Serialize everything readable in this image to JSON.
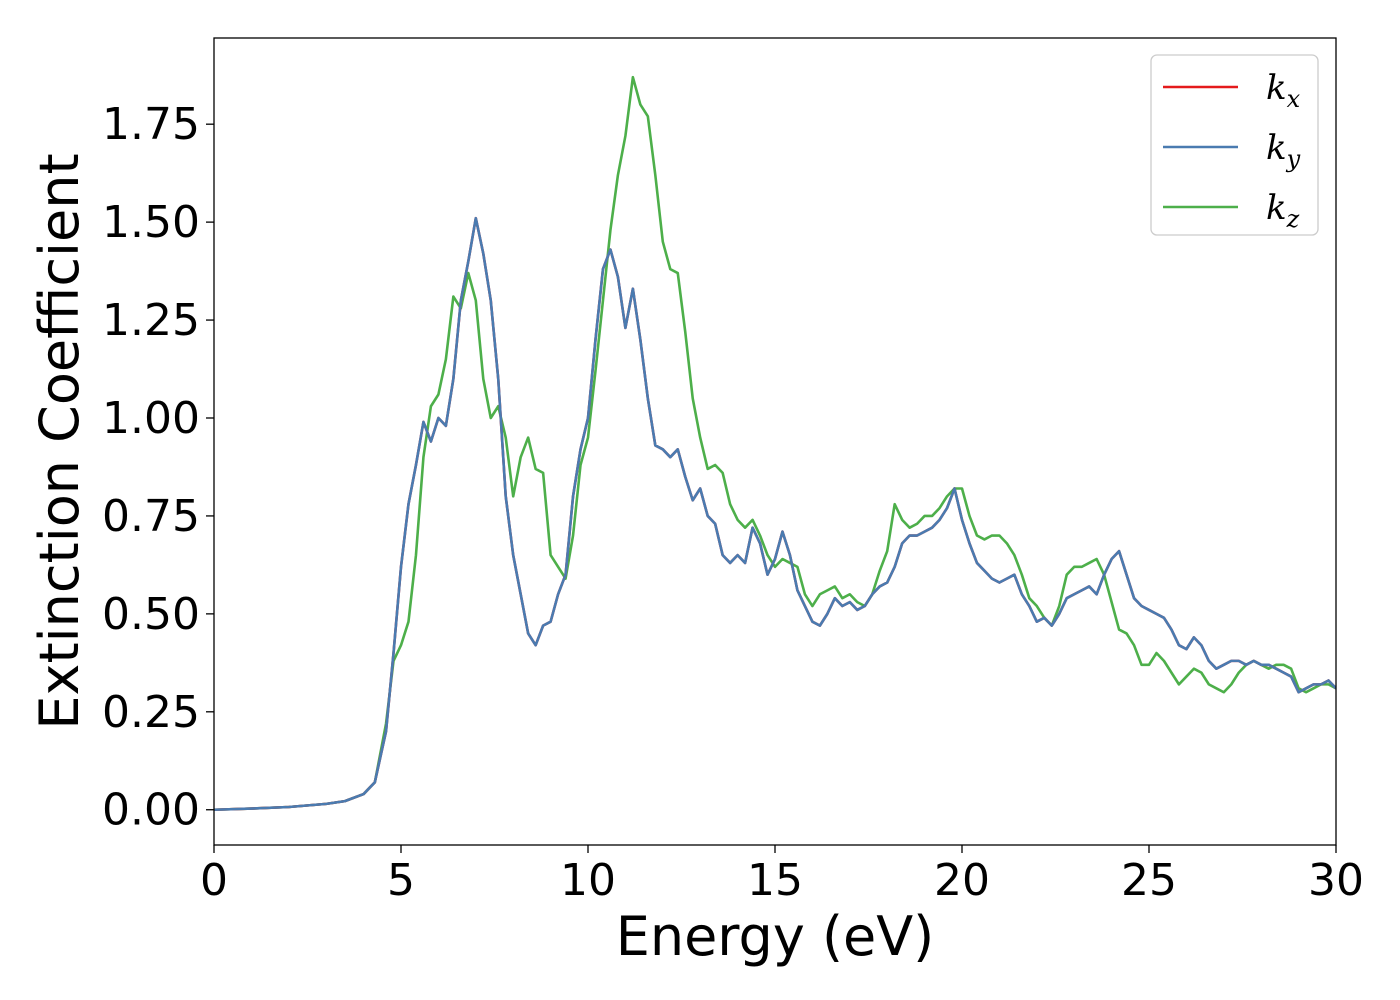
{
  "chart_data": {
    "type": "line",
    "title": "",
    "xlabel": "Energy (eV)",
    "ylabel": "Extinction Coefficient",
    "xlim": [
      0,
      30
    ],
    "ylim": [
      -0.09,
      1.97
    ],
    "xticks": [
      0,
      5,
      10,
      15,
      20,
      25,
      30
    ],
    "xtick_labels": [
      "0",
      "5",
      "10",
      "15",
      "20",
      "25",
      "30"
    ],
    "yticks": [
      0,
      0.25,
      0.5,
      0.75,
      1.0,
      1.25,
      1.5,
      1.75
    ],
    "ytick_labels": [
      "0.00",
      "0.25",
      "0.50",
      "0.75",
      "1.00",
      "1.25",
      "1.50",
      "1.75"
    ],
    "grid": false,
    "legend_position": "top-right",
    "series": [
      {
        "name": "k_x",
        "label_main": "k",
        "label_sub": "x",
        "color": "#e41a1c",
        "x": [
          0,
          1,
          2,
          3,
          3.5,
          4,
          4.3,
          4.6,
          4.8,
          5,
          5.2,
          5.4,
          5.6,
          5.8,
          6,
          6.2,
          6.4,
          6.6,
          6.8,
          7,
          7.2,
          7.4,
          7.6,
          7.8,
          8,
          8.2,
          8.4,
          8.6,
          8.8,
          9,
          9.2,
          9.4,
          9.6,
          9.8,
          10,
          10.2,
          10.4,
          10.6,
          10.8,
          11,
          11.2,
          11.4,
          11.6,
          11.8,
          12,
          12.2,
          12.4,
          12.6,
          12.8,
          13,
          13.2,
          13.4,
          13.6,
          13.8,
          14,
          14.2,
          14.4,
          14.6,
          14.8,
          15,
          15.2,
          15.4,
          15.6,
          15.8,
          16,
          16.2,
          16.4,
          16.6,
          16.8,
          17,
          17.2,
          17.4,
          17.6,
          17.8,
          18,
          18.2,
          18.4,
          18.6,
          18.8,
          19,
          19.2,
          19.4,
          19.6,
          19.8,
          20,
          20.2,
          20.4,
          20.6,
          20.8,
          21,
          21.2,
          21.4,
          21.6,
          21.8,
          22,
          22.2,
          22.4,
          22.6,
          22.8,
          23,
          23.2,
          23.4,
          23.6,
          23.8,
          24,
          24.2,
          24.4,
          24.6,
          24.8,
          25,
          25.2,
          25.4,
          25.6,
          25.8,
          26,
          26.2,
          26.4,
          26.6,
          26.8,
          27,
          27.2,
          27.4,
          27.6,
          27.8,
          28,
          28.2,
          28.4,
          28.6,
          28.8,
          29,
          29.2,
          29.4,
          29.6,
          29.8,
          30
        ],
        "y": [
          0,
          0.003,
          0.007,
          0.015,
          0.022,
          0.04,
          0.07,
          0.2,
          0.4,
          0.62,
          0.78,
          0.88,
          0.99,
          0.94,
          1.0,
          0.98,
          1.1,
          1.3,
          1.4,
          1.51,
          1.42,
          1.3,
          1.1,
          0.8,
          0.65,
          0.55,
          0.45,
          0.42,
          0.47,
          0.48,
          0.55,
          0.6,
          0.8,
          0.92,
          1.0,
          1.2,
          1.38,
          1.43,
          1.36,
          1.23,
          1.33,
          1.2,
          1.05,
          0.93,
          0.92,
          0.9,
          0.92,
          0.85,
          0.79,
          0.82,
          0.75,
          0.73,
          0.65,
          0.63,
          0.65,
          0.63,
          0.72,
          0.68,
          0.6,
          0.64,
          0.71,
          0.65,
          0.56,
          0.52,
          0.48,
          0.47,
          0.5,
          0.54,
          0.52,
          0.53,
          0.51,
          0.52,
          0.55,
          0.57,
          0.58,
          0.62,
          0.68,
          0.7,
          0.7,
          0.71,
          0.72,
          0.74,
          0.77,
          0.82,
          0.74,
          0.68,
          0.63,
          0.61,
          0.59,
          0.58,
          0.59,
          0.6,
          0.55,
          0.52,
          0.48,
          0.49,
          0.47,
          0.5,
          0.54,
          0.55,
          0.56,
          0.57,
          0.55,
          0.6,
          0.64,
          0.66,
          0.6,
          0.54,
          0.52,
          0.51,
          0.5,
          0.49,
          0.46,
          0.42,
          0.41,
          0.44,
          0.42,
          0.38,
          0.36,
          0.37,
          0.38,
          0.38,
          0.37,
          0.38,
          0.37,
          0.37,
          0.36,
          0.35,
          0.34,
          0.3,
          0.31,
          0.32,
          0.32,
          0.33,
          0.31
        ]
      },
      {
        "name": "k_y",
        "label_main": "k",
        "label_sub": "y",
        "color": "#4a7bb0",
        "x": [
          0,
          1,
          2,
          3,
          3.5,
          4,
          4.3,
          4.6,
          4.8,
          5,
          5.2,
          5.4,
          5.6,
          5.8,
          6,
          6.2,
          6.4,
          6.6,
          6.8,
          7,
          7.2,
          7.4,
          7.6,
          7.8,
          8,
          8.2,
          8.4,
          8.6,
          8.8,
          9,
          9.2,
          9.4,
          9.6,
          9.8,
          10,
          10.2,
          10.4,
          10.6,
          10.8,
          11,
          11.2,
          11.4,
          11.6,
          11.8,
          12,
          12.2,
          12.4,
          12.6,
          12.8,
          13,
          13.2,
          13.4,
          13.6,
          13.8,
          14,
          14.2,
          14.4,
          14.6,
          14.8,
          15,
          15.2,
          15.4,
          15.6,
          15.8,
          16,
          16.2,
          16.4,
          16.6,
          16.8,
          17,
          17.2,
          17.4,
          17.6,
          17.8,
          18,
          18.2,
          18.4,
          18.6,
          18.8,
          19,
          19.2,
          19.4,
          19.6,
          19.8,
          20,
          20.2,
          20.4,
          20.6,
          20.8,
          21,
          21.2,
          21.4,
          21.6,
          21.8,
          22,
          22.2,
          22.4,
          22.6,
          22.8,
          23,
          23.2,
          23.4,
          23.6,
          23.8,
          24,
          24.2,
          24.4,
          24.6,
          24.8,
          25,
          25.2,
          25.4,
          25.6,
          25.8,
          26,
          26.2,
          26.4,
          26.6,
          26.8,
          27,
          27.2,
          27.4,
          27.6,
          27.8,
          28,
          28.2,
          28.4,
          28.6,
          28.8,
          29,
          29.2,
          29.4,
          29.6,
          29.8,
          30
        ],
        "y": [
          0,
          0.003,
          0.007,
          0.015,
          0.022,
          0.04,
          0.07,
          0.2,
          0.4,
          0.62,
          0.78,
          0.88,
          0.99,
          0.94,
          1.0,
          0.98,
          1.1,
          1.3,
          1.4,
          1.51,
          1.42,
          1.3,
          1.1,
          0.8,
          0.65,
          0.55,
          0.45,
          0.42,
          0.47,
          0.48,
          0.55,
          0.6,
          0.8,
          0.92,
          1.0,
          1.2,
          1.38,
          1.43,
          1.36,
          1.23,
          1.33,
          1.2,
          1.05,
          0.93,
          0.92,
          0.9,
          0.92,
          0.85,
          0.79,
          0.82,
          0.75,
          0.73,
          0.65,
          0.63,
          0.65,
          0.63,
          0.72,
          0.68,
          0.6,
          0.64,
          0.71,
          0.65,
          0.56,
          0.52,
          0.48,
          0.47,
          0.5,
          0.54,
          0.52,
          0.53,
          0.51,
          0.52,
          0.55,
          0.57,
          0.58,
          0.62,
          0.68,
          0.7,
          0.7,
          0.71,
          0.72,
          0.74,
          0.77,
          0.82,
          0.74,
          0.68,
          0.63,
          0.61,
          0.59,
          0.58,
          0.59,
          0.6,
          0.55,
          0.52,
          0.48,
          0.49,
          0.47,
          0.5,
          0.54,
          0.55,
          0.56,
          0.57,
          0.55,
          0.6,
          0.64,
          0.66,
          0.6,
          0.54,
          0.52,
          0.51,
          0.5,
          0.49,
          0.46,
          0.42,
          0.41,
          0.44,
          0.42,
          0.38,
          0.36,
          0.37,
          0.38,
          0.38,
          0.37,
          0.38,
          0.37,
          0.37,
          0.36,
          0.35,
          0.34,
          0.3,
          0.31,
          0.32,
          0.32,
          0.33,
          0.31
        ]
      },
      {
        "name": "k_z",
        "label_main": "k",
        "label_sub": "z",
        "color": "#4daf4a",
        "x": [
          0,
          1,
          2,
          3,
          3.5,
          4,
          4.3,
          4.6,
          4.8,
          5,
          5.2,
          5.4,
          5.6,
          5.8,
          6,
          6.2,
          6.4,
          6.6,
          6.8,
          7,
          7.2,
          7.4,
          7.6,
          7.8,
          8,
          8.2,
          8.4,
          8.6,
          8.8,
          9,
          9.2,
          9.4,
          9.6,
          9.8,
          10,
          10.2,
          10.4,
          10.6,
          10.8,
          11,
          11.2,
          11.4,
          11.6,
          11.8,
          12,
          12.2,
          12.4,
          12.6,
          12.8,
          13,
          13.2,
          13.4,
          13.6,
          13.8,
          14,
          14.2,
          14.4,
          14.6,
          14.8,
          15,
          15.2,
          15.4,
          15.6,
          15.8,
          16,
          16.2,
          16.4,
          16.6,
          16.8,
          17,
          17.2,
          17.4,
          17.6,
          17.8,
          18,
          18.2,
          18.4,
          18.6,
          18.8,
          19,
          19.2,
          19.4,
          19.6,
          19.8,
          20,
          20.2,
          20.4,
          20.6,
          20.8,
          21,
          21.2,
          21.4,
          21.6,
          21.8,
          22,
          22.2,
          22.4,
          22.6,
          22.8,
          23,
          23.2,
          23.4,
          23.6,
          23.8,
          24,
          24.2,
          24.4,
          24.6,
          24.8,
          25,
          25.2,
          25.4,
          25.6,
          25.8,
          26,
          26.2,
          26.4,
          26.6,
          26.8,
          27,
          27.2,
          27.4,
          27.6,
          27.8,
          28,
          28.2,
          28.4,
          28.6,
          28.8,
          29,
          29.2,
          29.4,
          29.6,
          29.8,
          30
        ],
        "y": [
          0,
          0.003,
          0.007,
          0.015,
          0.022,
          0.04,
          0.07,
          0.22,
          0.38,
          0.42,
          0.48,
          0.65,
          0.9,
          1.03,
          1.06,
          1.15,
          1.31,
          1.28,
          1.37,
          1.3,
          1.1,
          1.0,
          1.03,
          0.95,
          0.8,
          0.9,
          0.95,
          0.87,
          0.86,
          0.65,
          0.62,
          0.59,
          0.7,
          0.88,
          0.95,
          1.12,
          1.3,
          1.48,
          1.62,
          1.72,
          1.87,
          1.8,
          1.77,
          1.62,
          1.45,
          1.38,
          1.37,
          1.22,
          1.05,
          0.95,
          0.87,
          0.88,
          0.86,
          0.78,
          0.74,
          0.72,
          0.74,
          0.7,
          0.65,
          0.62,
          0.64,
          0.63,
          0.62,
          0.55,
          0.52,
          0.55,
          0.56,
          0.57,
          0.54,
          0.55,
          0.53,
          0.52,
          0.55,
          0.61,
          0.66,
          0.78,
          0.74,
          0.72,
          0.73,
          0.75,
          0.75,
          0.77,
          0.8,
          0.82,
          0.82,
          0.75,
          0.7,
          0.69,
          0.7,
          0.7,
          0.68,
          0.65,
          0.6,
          0.54,
          0.52,
          0.49,
          0.47,
          0.52,
          0.6,
          0.62,
          0.62,
          0.63,
          0.64,
          0.6,
          0.53,
          0.46,
          0.45,
          0.42,
          0.37,
          0.37,
          0.4,
          0.38,
          0.35,
          0.32,
          0.34,
          0.36,
          0.35,
          0.32,
          0.31,
          0.3,
          0.32,
          0.35,
          0.37,
          0.38,
          0.37,
          0.36,
          0.37,
          0.37,
          0.36,
          0.31,
          0.3,
          0.31,
          0.32,
          0.32,
          0.31
        ]
      }
    ]
  }
}
